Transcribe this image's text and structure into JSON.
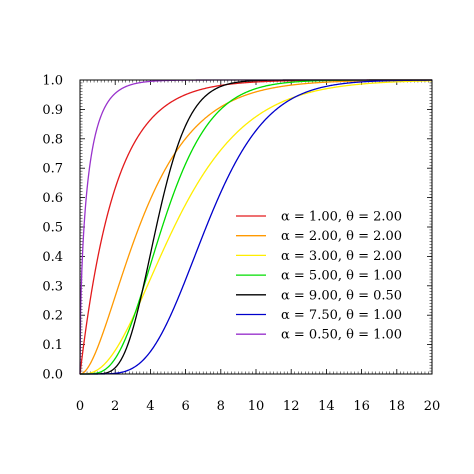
{
  "chart_data": {
    "type": "line",
    "title": "",
    "xlabel": "",
    "ylabel": "",
    "xlim": [
      0,
      20
    ],
    "ylim": [
      0,
      1
    ],
    "xticks": [
      "0",
      "2",
      "4",
      "6",
      "8",
      "10",
      "12",
      "14",
      "16",
      "18",
      "20"
    ],
    "yticks": [
      "0.0",
      "0.1",
      "0.2",
      "0.3",
      "0.4",
      "0.5",
      "0.6",
      "0.7",
      "0.8",
      "0.9",
      "1.0"
    ],
    "grid": false,
    "legend_position": "center-right",
    "series": [
      {
        "name": "α = 1.00, θ = 2.00",
        "alpha": 1.0,
        "theta": 2.0,
        "color": "#e31a1c"
      },
      {
        "name": "α = 2.00, θ = 2.00",
        "alpha": 2.0,
        "theta": 2.0,
        "color": "#ff9900"
      },
      {
        "name": "α = 3.00, θ = 2.00",
        "alpha": 3.0,
        "theta": 2.0,
        "color": "#ffee00"
      },
      {
        "name": "α = 5.00, θ = 1.00",
        "alpha": 5.0,
        "theta": 1.0,
        "color": "#00dd00"
      },
      {
        "name": "α = 9.00, θ = 0.50",
        "alpha": 9.0,
        "theta": 0.5,
        "color": "#000000"
      },
      {
        "name": "α = 7.50, θ = 1.00",
        "alpha": 7.5,
        "theta": 1.0,
        "color": "#0000cc"
      },
      {
        "name": "α = 0.50, θ = 1.00",
        "alpha": 0.5,
        "theta": 1.0,
        "color": "#9933cc"
      }
    ]
  }
}
